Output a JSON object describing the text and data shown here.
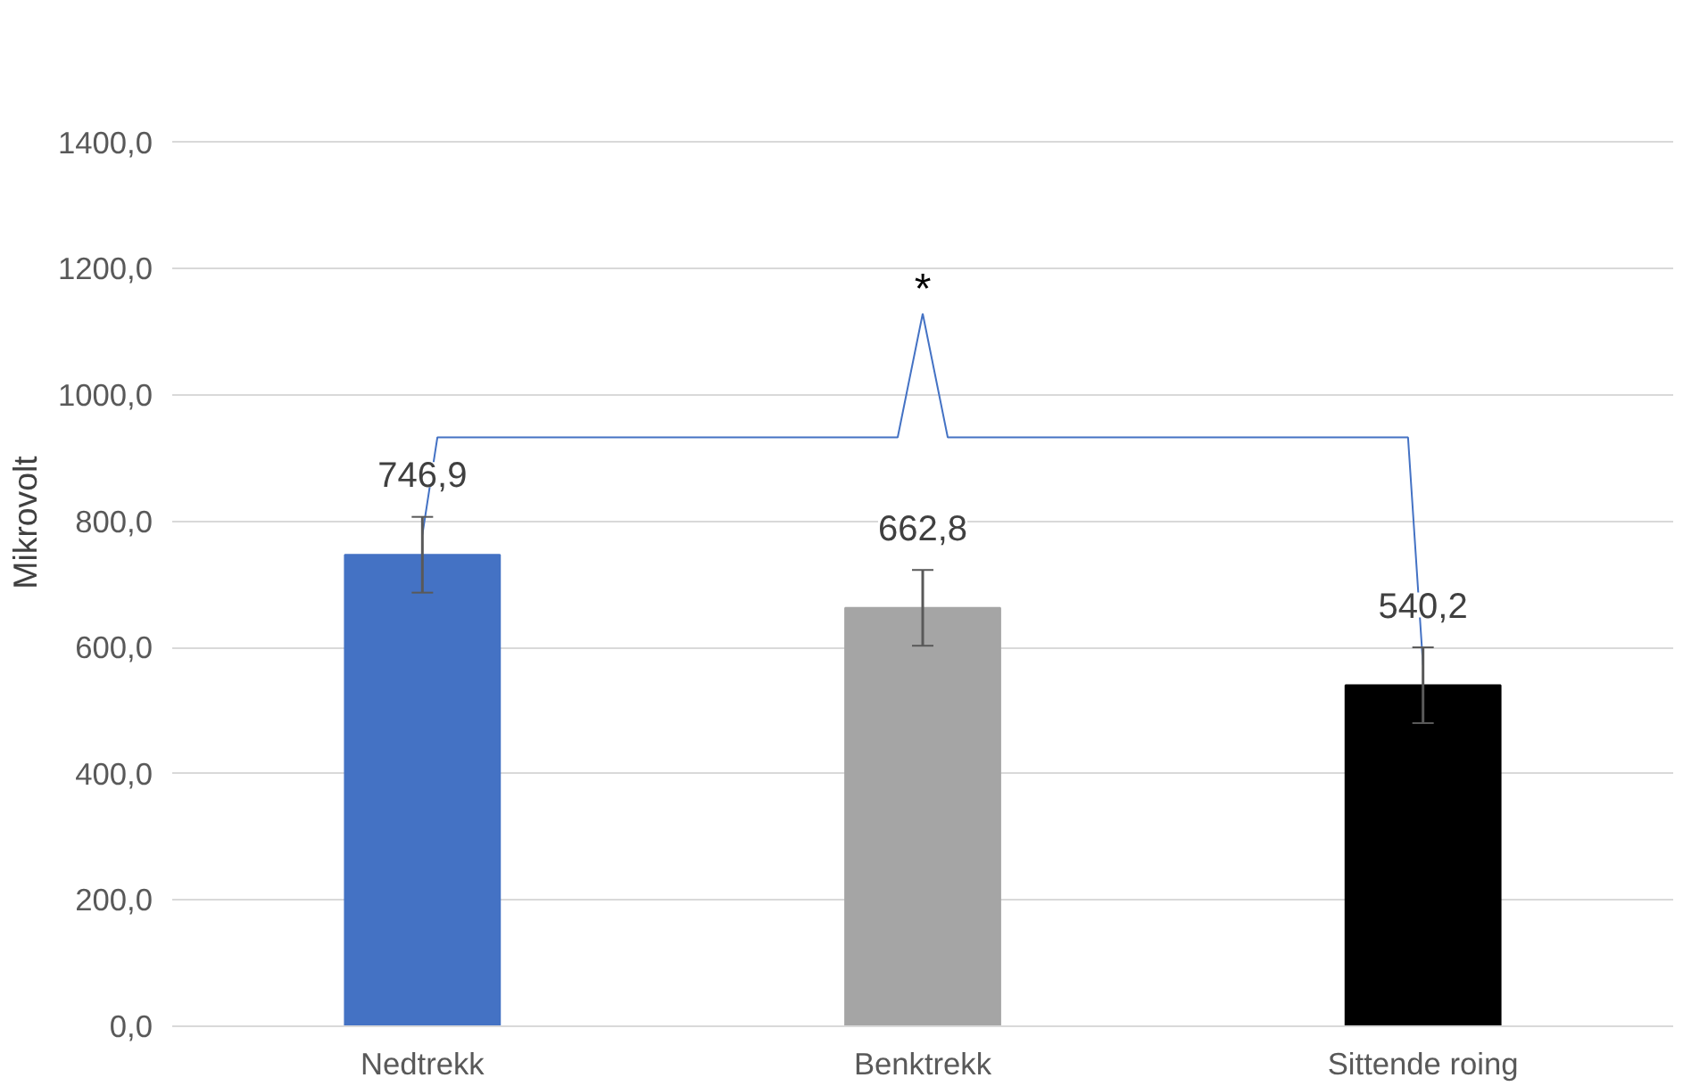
{
  "chart_data": {
    "type": "bar",
    "ylabel": "Mikrovolt",
    "categories": [
      "Nedtrekk",
      "Benktrekk",
      "Sittende roing"
    ],
    "values": [
      746.9,
      662.8,
      540.2
    ],
    "colors": [
      "#4472c4",
      "#a5a5a5",
      "#000000"
    ],
    "errors": [
      60,
      60,
      60
    ],
    "data_labels": true,
    "value_labels": [
      "746,9",
      "662,8",
      "540,2"
    ],
    "ylim": [
      0,
      1400
    ],
    "yticks": [
      {
        "value": 0,
        "label": "0,0"
      },
      {
        "value": 200,
        "label": "200,0"
      },
      {
        "value": 400,
        "label": "400,0"
      },
      {
        "value": 600,
        "label": "600,0"
      },
      {
        "value": 800,
        "label": "800,0"
      },
      {
        "value": 1000,
        "label": "1000,0"
      },
      {
        "value": 1200,
        "label": "1200,0"
      },
      {
        "value": 1400,
        "label": "1400,0"
      }
    ],
    "grid": "y",
    "annotations": [
      "*"
    ]
  }
}
